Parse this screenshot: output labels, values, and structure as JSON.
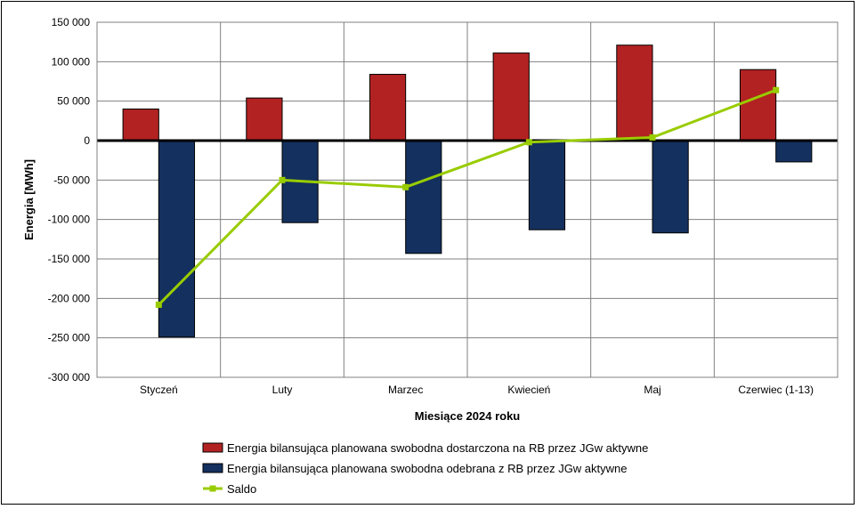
{
  "chart_data": {
    "type": "bar",
    "categories": [
      "Styczeń",
      "Luty",
      "Marzec",
      "Kwiecień",
      "Maj",
      "Czerwiec (1-13)"
    ],
    "series": [
      {
        "name": "Energia bilansująca planowana swobodna dostarczona na RB przez JGw aktywne",
        "type": "bar",
        "color": "#B22222",
        "values": [
          40000,
          54000,
          84000,
          111000,
          121000,
          90000
        ]
      },
      {
        "name": "Energia bilansująca planowana swobodna odebrana z RB przez JGw aktywne",
        "type": "bar",
        "color": "#14305E",
        "values": [
          -249000,
          -104000,
          -143000,
          -113000,
          -117000,
          -27000
        ]
      },
      {
        "name": "Saldo",
        "type": "line",
        "color": "#99CC00",
        "values": [
          -208000,
          -50000,
          -59000,
          -2000,
          4000,
          64000
        ]
      }
    ],
    "xlabel": "Miesiące 2024  roku",
    "ylabel": "Energia [MWh]",
    "ylim": [
      -300000,
      150000
    ],
    "yticks": [
      150000,
      100000,
      50000,
      0,
      -50000,
      -100000,
      -150000,
      -200000,
      -250000,
      -300000
    ],
    "ytick_labels": [
      "150 000",
      "100 000",
      "50 000",
      "0",
      "-50 000",
      "-100 000",
      "-150 000",
      "-200 000",
      "-250 000",
      "-300 000"
    ],
    "grid": true,
    "legend_position": "bottom"
  }
}
